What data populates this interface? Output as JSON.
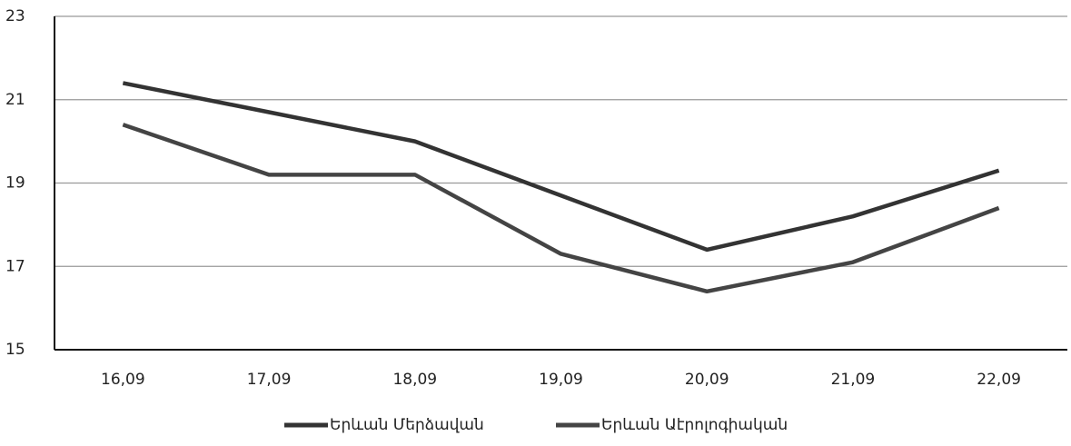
{
  "chart_data": {
    "type": "line",
    "categories": [
      "16,09",
      "17,09",
      "18,09",
      "19,09",
      "20,09",
      "21,09",
      "22,09"
    ],
    "series": [
      {
        "name": "Երևան Մերձավան",
        "color": "#333333",
        "values": [
          21.4,
          20.7,
          20.0,
          18.7,
          17.4,
          18.2,
          19.3
        ]
      },
      {
        "name": "Երևան Աէրոլոգիական",
        "color": "#444444",
        "values": [
          20.4,
          19.2,
          19.2,
          17.3,
          16.4,
          17.1,
          18.4
        ]
      }
    ],
    "ylim": [
      15,
      23
    ],
    "yticks": [
      15,
      17,
      19,
      21,
      23
    ],
    "grid": true,
    "legend": "bottom"
  }
}
